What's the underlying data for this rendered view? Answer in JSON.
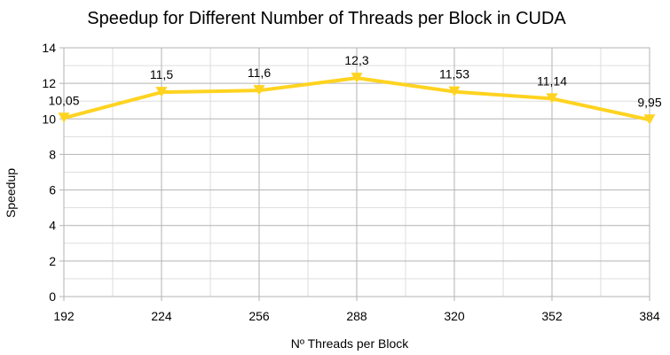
{
  "chart_data": {
    "type": "line",
    "title": "Speedup for Different Number of Threads per Block in CUDA",
    "xlabel": "Nº Threads per Block",
    "ylabel": "Speedup",
    "x": [
      192,
      224,
      256,
      288,
      320,
      352,
      384
    ],
    "x_tick_labels": [
      "192",
      "224",
      "256",
      "288",
      "320",
      "352",
      "384"
    ],
    "series": [
      {
        "values": [
          10.05,
          11.5,
          11.6,
          12.3,
          11.53,
          11.14,
          9.95
        ],
        "data_labels": [
          "10,05",
          "11,5",
          "11,6",
          "12,3",
          "11,53",
          "11,14",
          "9,95"
        ],
        "color": "#FFD320",
        "marker": "triangle-down"
      }
    ],
    "ylim": [
      0,
      14
    ],
    "yticks": [
      0,
      2,
      4,
      6,
      8,
      10,
      12,
      14
    ],
    "y_tick_labels": [
      "0",
      "2",
      "4",
      "6",
      "8",
      "10",
      "12",
      "14"
    ],
    "grid": "on",
    "legend": "none"
  }
}
